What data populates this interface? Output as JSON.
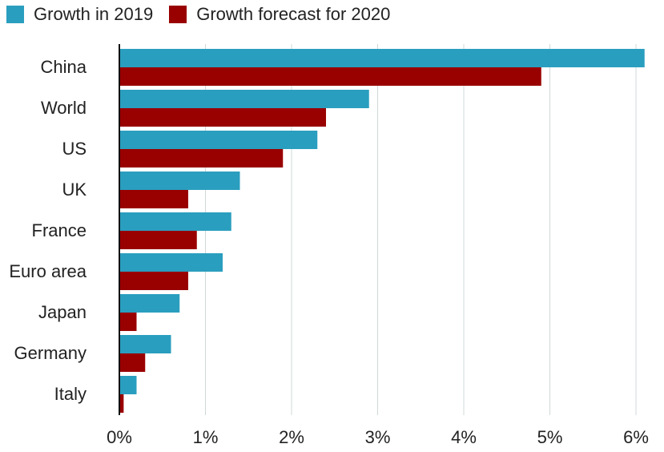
{
  "legend": [
    {
      "name": "Growth in 2019",
      "color": "#2a9ebf"
    },
    {
      "name": "Growth forecast for 2020",
      "color": "#990000"
    }
  ],
  "chart_data": {
    "type": "bar",
    "orientation": "horizontal",
    "categories": [
      "China",
      "World",
      "US",
      "UK",
      "France",
      "Euro area",
      "Japan",
      "Germany",
      "Italy"
    ],
    "series": [
      {
        "name": "Growth in 2019",
        "color": "#2a9ebf",
        "values": [
          6.1,
          2.9,
          2.3,
          1.4,
          1.3,
          1.2,
          0.7,
          0.6,
          0.2
        ]
      },
      {
        "name": "Growth forecast for 2020",
        "color": "#990000",
        "values": [
          4.9,
          2.4,
          1.9,
          0.8,
          0.9,
          0.8,
          0.2,
          0.3,
          0.05
        ]
      }
    ],
    "xlim": [
      0,
      6
    ],
    "xticks": [
      0,
      1,
      2,
      3,
      4,
      5,
      6
    ],
    "xtick_labels": [
      "0%",
      "1%",
      "2%",
      "3%",
      "4%",
      "5%",
      "6%"
    ],
    "grid": "vertical",
    "legend_position": "top-left",
    "title": "",
    "xlabel": "",
    "ylabel": ""
  }
}
